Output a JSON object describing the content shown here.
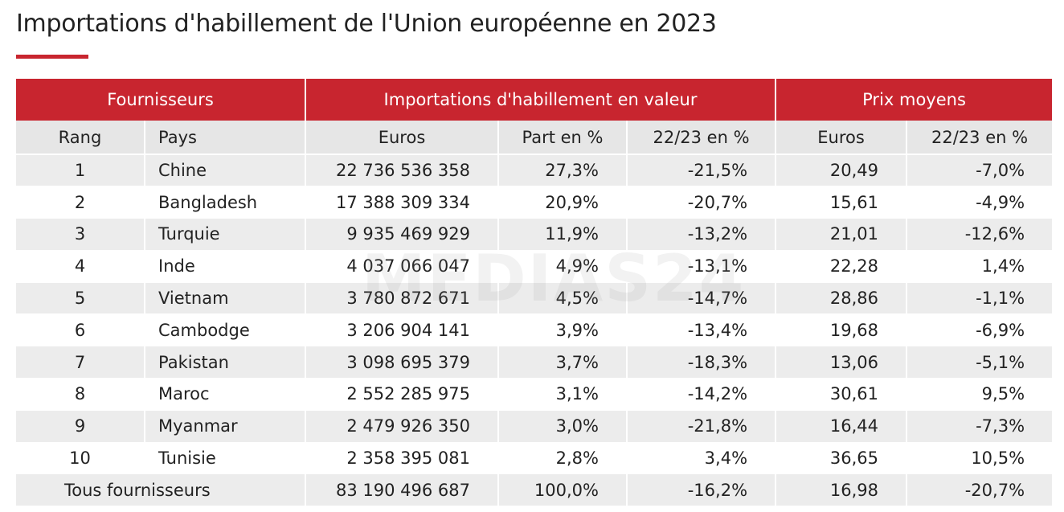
{
  "header": {
    "title": "Importations d'habillement de l'Union européenne en 2023"
  },
  "watermark": "MEDIAS24",
  "table": {
    "groups": [
      "Fournisseurs",
      "Importations d'habillement en valeur",
      "Prix moyens"
    ],
    "columns": [
      "Rang",
      "Pays",
      "Euros",
      "Part en %",
      "22/23 en %",
      "Euros",
      "22/23 en %"
    ],
    "rows": [
      [
        "1",
        "Chine",
        "22 736 536 358",
        "27,3%",
        "-21,5%",
        "20,49",
        "-7,0%"
      ],
      [
        "2",
        "Bangladesh",
        "17 388 309 334",
        "20,9%",
        "-20,7%",
        "15,61",
        "-4,9%"
      ],
      [
        "3",
        "Turquie",
        "9 935 469 929",
        "11,9%",
        "-13,2%",
        "21,01",
        "-12,6%"
      ],
      [
        "4",
        "Inde",
        "4 037 066 047",
        "4,9%",
        "-13,1%",
        "22,28",
        "1,4%"
      ],
      [
        "5",
        "Vietnam",
        "3 780 872 671",
        "4,5%",
        "-14,7%",
        "28,86",
        "-1,1%"
      ],
      [
        "6",
        "Cambodge",
        "3 206 904 141",
        "3,9%",
        "-13,4%",
        "19,68",
        "-6,9%"
      ],
      [
        "7",
        "Pakistan",
        "3 098 695 379",
        "3,7%",
        "-18,3%",
        "13,06",
        "-5,1%"
      ],
      [
        "8",
        "Maroc",
        "2 552 285 975",
        "3,1%",
        "-14,2%",
        "30,61",
        "9,5%"
      ],
      [
        "9",
        "Myanmar",
        "2 479 926 350",
        "3,0%",
        "-21,8%",
        "16,44",
        "-7,3%"
      ],
      [
        "10",
        "Tunisie",
        "2 358 395 081",
        "2,8%",
        "3,4%",
        "36,65",
        "10,5%"
      ]
    ],
    "total": [
      "Tous fournisseurs",
      "83 190 496 687",
      "100,0%",
      "-16,2%",
      "16,98",
      "-20,7%"
    ]
  }
}
